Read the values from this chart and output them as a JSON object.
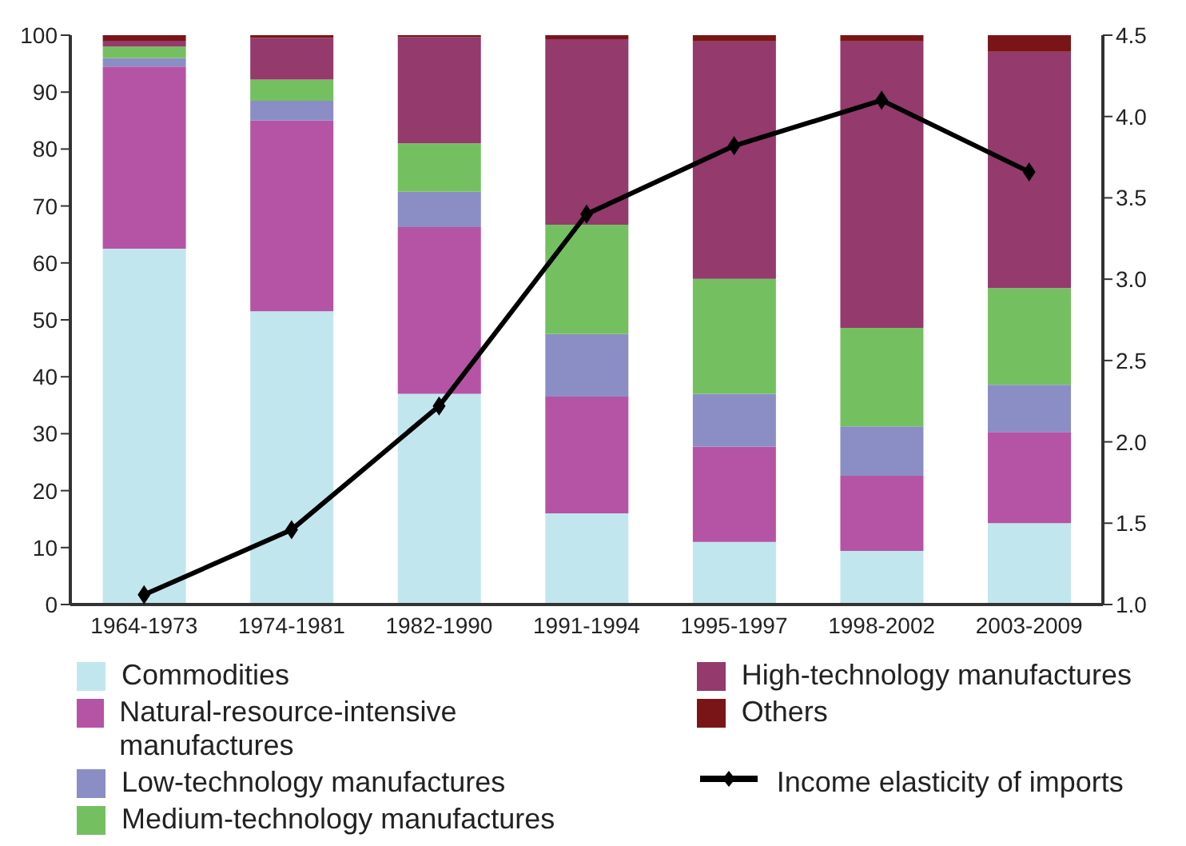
{
  "chart_data": {
    "type": "bar",
    "stacked": true,
    "categories": [
      "1964-1973",
      "1974-1981",
      "1982-1990",
      "1991-1994",
      "1995-1997",
      "1998-2002",
      "2003-2009"
    ],
    "series": [
      {
        "name": "Commodities",
        "color": "#c2e6ee",
        "values": [
          62.5,
          51.5,
          37,
          16,
          11,
          9.4,
          14.3
        ]
      },
      {
        "name": "Natural-resource-intensive manufactures",
        "color": "#b554a5",
        "values": [
          32,
          33.5,
          29.3,
          20.5,
          16.7,
          13.2,
          16
        ]
      },
      {
        "name": "Low-technology manufactures",
        "color": "#8b8ec4",
        "values": [
          1.5,
          3.5,
          6.2,
          11,
          9.3,
          8.7,
          8.3
        ]
      },
      {
        "name": "Medium-technology manufactures",
        "color": "#74c060",
        "values": [
          2,
          3.7,
          8.5,
          19.2,
          20.2,
          17.3,
          17
        ]
      },
      {
        "name": "High-technology manufactures",
        "color": "#943a6c",
        "values": [
          1,
          7.3,
          18.7,
          32.6,
          41.7,
          50.3,
          41.5
        ]
      },
      {
        "name": "Others",
        "color": "#7a1517",
        "values": [
          1,
          0.5,
          0.3,
          0.7,
          1.1,
          1.1,
          2.9
        ]
      },
      {
        "name": "Income elasticity of imports",
        "type": "line",
        "axis": "y2",
        "color": "#000000",
        "values": [
          1.06,
          1.46,
          2.22,
          3.4,
          3.82,
          4.1,
          3.66
        ]
      }
    ],
    "ylim": [
      0,
      100
    ],
    "yticks": [
      0,
      10,
      20,
      30,
      40,
      50,
      60,
      70,
      80,
      90,
      100
    ],
    "y2lim": [
      1,
      4.5
    ],
    "y2ticks": [
      {
        "value": 1,
        "label": "1.0"
      },
      {
        "value": 1.5,
        "label": "1.5"
      },
      {
        "value": 2,
        "label": "2.0"
      },
      {
        "value": 2.5,
        "label": "2.5"
      },
      {
        "value": 3,
        "label": "3.0"
      },
      {
        "value": 3.5,
        "label": "3.5"
      },
      {
        "value": 4,
        "label": "4.0"
      },
      {
        "value": 4.5,
        "label": "4.5"
      }
    ],
    "marker": "diamond",
    "legend": "bottom",
    "grid": false
  }
}
